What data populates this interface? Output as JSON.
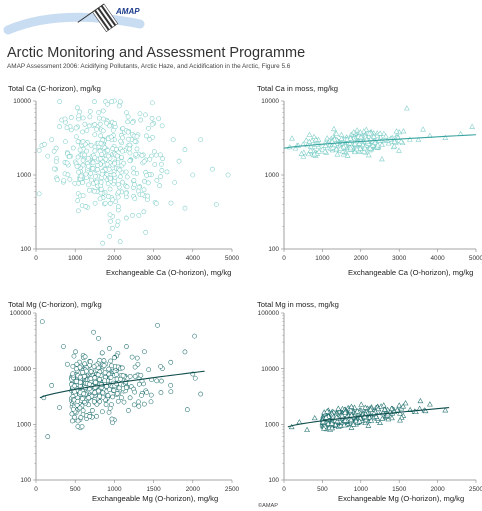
{
  "header": {
    "organization": "Arctic Monitoring and Assessment Programme",
    "subtitle": "AMAP Assessment 2006: Acidifying Pollutants, Arctic Haze, and Acidification in the Arctic, Figure 5.6",
    "logo_text": "AMAP",
    "copyright": "©AMAP"
  },
  "colors": {
    "markers": "#7ccdc8",
    "markers_dark": "#1f6e6e",
    "trend_light": "#3aa5a0",
    "trend_dark": "#114d4d",
    "axis": "#888888",
    "gridline": "#dddddd"
  },
  "chart_data": [
    {
      "id": "ca_c_horizon",
      "type": "scatter",
      "marker": "circle",
      "title": "Total Ca (C-horizon), mg/kg",
      "xlabel": "Exchangeable Ca (O-horizon), mg/kg",
      "xlim": [
        0,
        5000
      ],
      "xticks": [
        "0",
        "1000",
        "2000",
        "3000",
        "4000",
        "5000"
      ],
      "ylim": [
        100,
        10000
      ],
      "yscale": "log",
      "yticks": [
        "100",
        "1000",
        "10000"
      ],
      "trend": null,
      "sample_points": [
        [
          150,
          2500
        ],
        [
          300,
          1800
        ],
        [
          400,
          3000
        ],
        [
          500,
          1200
        ],
        [
          600,
          4500
        ],
        [
          700,
          800
        ],
        [
          800,
          2000
        ],
        [
          900,
          6000
        ],
        [
          1000,
          1500
        ],
        [
          1100,
          2800
        ],
        [
          1200,
          900
        ],
        [
          1300,
          4000
        ],
        [
          1400,
          1700
        ],
        [
          1500,
          3500
        ],
        [
          1600,
          700
        ],
        [
          1700,
          2200
        ],
        [
          1800,
          5500
        ],
        [
          1900,
          1300
        ],
        [
          2000,
          3000
        ],
        [
          2100,
          1800
        ],
        [
          2200,
          4200
        ],
        [
          2300,
          1100
        ],
        [
          2400,
          2500
        ],
        [
          2600,
          3500
        ],
        [
          2800,
          1600
        ],
        [
          3000,
          5000
        ],
        [
          3200,
          1400
        ],
        [
          3500,
          3000
        ],
        [
          3800,
          2200
        ],
        [
          4000,
          1000
        ],
        [
          4200,
          3000
        ],
        [
          4500,
          1200
        ],
        [
          4600,
          400
        ],
        [
          4900,
          1000
        ],
        [
          1700,
          120
        ],
        [
          2000,
          10000
        ]
      ]
    },
    {
      "id": "ca_moss",
      "type": "scatter",
      "marker": "triangle",
      "title": "Total Ca in moss, mg/kg",
      "xlabel": "Exchangeable Ca (O-horizon), mg/kg",
      "xlim": [
        0,
        5000
      ],
      "xticks": [
        "0",
        "1000",
        "2000",
        "3000",
        "4000",
        "5000"
      ],
      "ylim": [
        100,
        10000
      ],
      "yscale": "log",
      "yticks": [
        "100",
        "1000",
        "10000"
      ],
      "trend": {
        "x": [
          0,
          5000
        ],
        "y": [
          2300,
          3500
        ]
      },
      "sample_points": [
        [
          300,
          2300
        ],
        [
          500,
          2600
        ],
        [
          700,
          2100
        ],
        [
          900,
          3000
        ],
        [
          1100,
          2500
        ],
        [
          1300,
          4200
        ],
        [
          1500,
          2700
        ],
        [
          1700,
          2400
        ],
        [
          1900,
          3600
        ],
        [
          2100,
          2900
        ],
        [
          2300,
          2500
        ],
        [
          2500,
          3300
        ],
        [
          2800,
          2800
        ],
        [
          3000,
          3800
        ],
        [
          3200,
          8000
        ],
        [
          3500,
          3000
        ],
        [
          3800,
          3400
        ],
        [
          4200,
          3200
        ],
        [
          4600,
          3600
        ],
        [
          4900,
          4500
        ]
      ]
    },
    {
      "id": "mg_c_horizon",
      "type": "scatter",
      "marker": "circle",
      "title": "Total Mg (C-horizon), mg/kg",
      "xlabel": "Exchangeable Mg (O-horizon), mg/kg",
      "xlim": [
        0,
        2500
      ],
      "xticks": [
        "0",
        "500",
        "1000",
        "1500",
        "2000",
        "2500"
      ],
      "ylim": [
        100,
        100000
      ],
      "yscale": "log",
      "yticks": [
        "100",
        "1000",
        "10000",
        "100000"
      ],
      "trend": {
        "x": [
          50,
          2150
        ],
        "y": [
          3000,
          9000
        ]
      },
      "sample_points": [
        [
          80,
          70000
        ],
        [
          100,
          3000
        ],
        [
          150,
          600
        ],
        [
          200,
          5000
        ],
        [
          300,
          2000
        ],
        [
          400,
          12000
        ],
        [
          500,
          3500
        ],
        [
          600,
          1500
        ],
        [
          700,
          8000
        ],
        [
          800,
          2500
        ],
        [
          900,
          5000
        ],
        [
          1000,
          1200
        ],
        [
          1100,
          7000
        ],
        [
          1200,
          3000
        ],
        [
          1300,
          12000
        ],
        [
          1400,
          4000
        ],
        [
          1550,
          60000
        ],
        [
          1600,
          6000
        ],
        [
          1900,
          20000
        ],
        [
          2100,
          3500
        ],
        [
          2000,
          8000
        ],
        [
          350,
          25000
        ]
      ]
    },
    {
      "id": "mg_moss",
      "type": "scatter",
      "marker": "triangle",
      "title": "Total Mg in moss, mg/kg",
      "xlabel": "Exchangeable Mg (O-horizon), mg/kg",
      "xlim": [
        0,
        2500
      ],
      "xticks": [
        "0",
        "500",
        "1000",
        "1500",
        "2000",
        "2500"
      ],
      "ylim": [
        100,
        100000
      ],
      "yscale": "log",
      "yticks": [
        "100",
        "1000",
        "10000",
        "100000"
      ],
      "trend": {
        "x": [
          50,
          2150
        ],
        "y": [
          900,
          2000
        ]
      },
      "sample_points": [
        [
          100,
          900
        ],
        [
          200,
          1100
        ],
        [
          300,
          800
        ],
        [
          400,
          1300
        ],
        [
          500,
          1000
        ],
        [
          600,
          1500
        ],
        [
          700,
          1200
        ],
        [
          800,
          1600
        ],
        [
          900,
          1300
        ],
        [
          1000,
          1800
        ],
        [
          1100,
          1400
        ],
        [
          1200,
          2000
        ],
        [
          1300,
          1600
        ],
        [
          1400,
          1900
        ],
        [
          1500,
          2200
        ],
        [
          1700,
          1700
        ],
        [
          1900,
          2300
        ],
        [
          2100,
          1800
        ]
      ]
    }
  ]
}
